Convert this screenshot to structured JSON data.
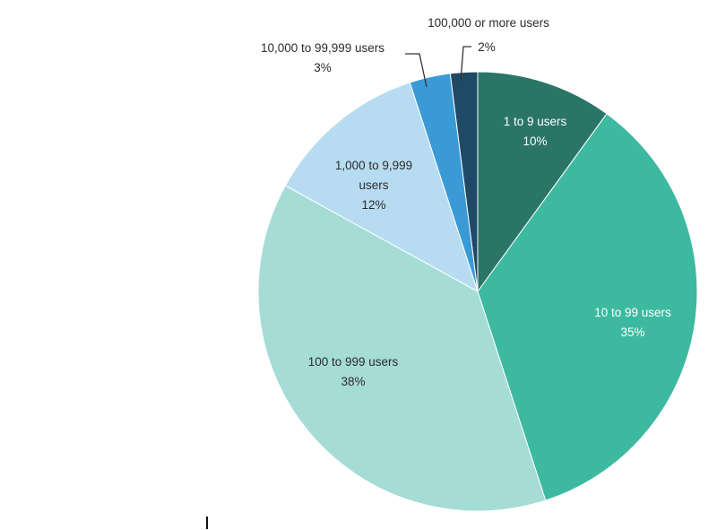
{
  "chart_data": {
    "type": "pie",
    "title": "",
    "start_angle_deg": 0,
    "direction": "clockwise",
    "slices": [
      {
        "label_lines": [
          "1 to 9 users",
          "10%"
        ],
        "value": 10,
        "color": "#2a7566",
        "label_color": "#ffffff",
        "label_style": "inside"
      },
      {
        "label_lines": [
          "10 to 99 users",
          "35%"
        ],
        "value": 35,
        "color": "#3db9a0",
        "label_color": "#ffffff",
        "label_style": "inside"
      },
      {
        "label_lines": [
          "100 to 999 users",
          "38%"
        ],
        "value": 38,
        "color": "#a6dcd6",
        "label_color": "#2b2b2b",
        "label_style": "inside"
      },
      {
        "label_lines": [
          "1,000 to 9,999",
          "users",
          "12%"
        ],
        "value": 12,
        "color": "#b7dcf1",
        "label_color": "#2b2b2b",
        "label_style": "inside"
      },
      {
        "label_lines": [
          "10,000 to 99,999 users",
          "3%"
        ],
        "value": 3,
        "color": "#3a9ad6",
        "label_color": "#2b2b2b",
        "label_style": "callout-left"
      },
      {
        "label_lines": [
          "100,000 or more users",
          "2%"
        ],
        "value": 2,
        "color": "#1f4a66",
        "label_color": "#2b2b2b",
        "label_style": "callout-right"
      }
    ]
  }
}
